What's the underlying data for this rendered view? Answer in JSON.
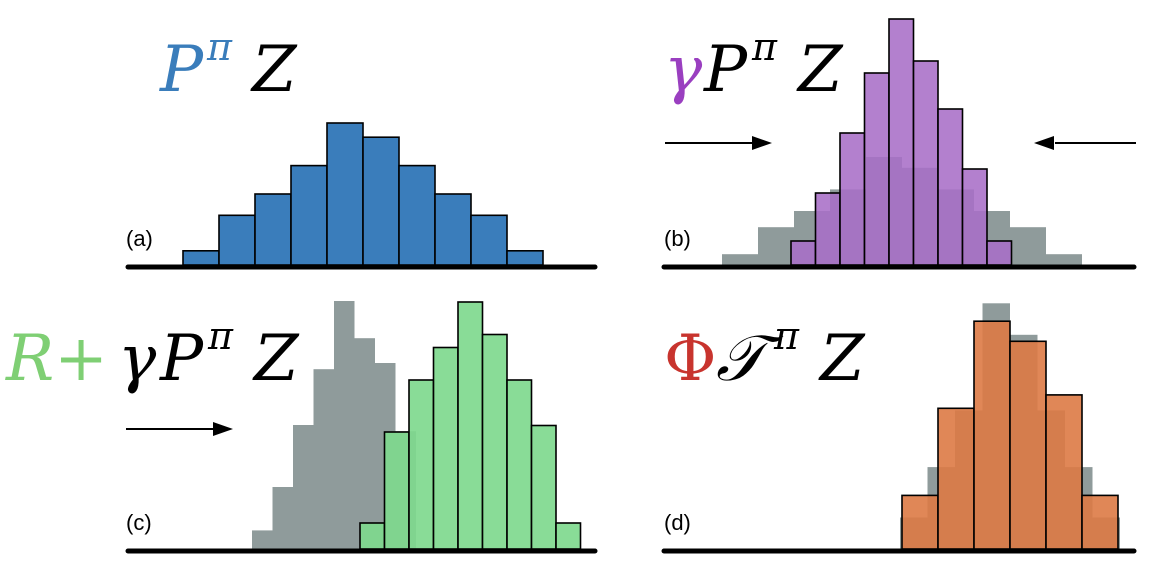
{
  "colors": {
    "blue": "#3a7dbb",
    "purple": "#a86ec7",
    "purple_overlap": "#9561ac",
    "gray": "#8f9b9b",
    "green": "#7fd98e",
    "green_overlap": "#5dbd72",
    "orange": "#dd7a45",
    "orange_overlap": "#c05b2b",
    "label_purple": "#9a3fc0",
    "label_green": "#7fcf74",
    "label_red": "#c8342e"
  },
  "panels": [
    {
      "id": "a",
      "label": "(a)",
      "formula": {
        "prefix": "",
        "op": "P",
        "sup": "π",
        "var": "Z"
      },
      "distribution": {
        "name": "",
        "bins": 10,
        "values": [
          2,
          7,
          10,
          14,
          20,
          18,
          14,
          10,
          7,
          2
        ]
      }
    },
    {
      "id": "b",
      "label": "(b)",
      "formula": {
        "prefix": "γ",
        "op": "P",
        "sup": "π",
        "var": "Z"
      },
      "arrows": [
        "right",
        "left"
      ],
      "background": {
        "values": [
          2,
          7,
          10,
          14,
          20,
          18,
          14,
          10,
          7,
          2
        ]
      },
      "distribution": {
        "values": [
          4,
          12,
          22,
          32,
          41,
          34,
          26,
          16,
          4
        ]
      }
    },
    {
      "id": "c",
      "label": "(c)",
      "formula": {
        "prefix": "R+",
        "op2": "γ",
        "op": "P",
        "sup": "π",
        "var": "Z"
      },
      "arrows": [
        "right"
      ],
      "background": {
        "values": [
          3,
          10,
          20,
          29,
          40,
          34,
          30,
          19
        ]
      },
      "distribution": {
        "values": [
          4,
          18,
          26,
          31,
          38,
          33,
          26,
          19,
          4
        ]
      }
    },
    {
      "id": "d",
      "label": "(d)",
      "formula": {
        "prefix": "Φ",
        "op": "𝒯",
        "sup": "π",
        "var": "Z"
      },
      "background": {
        "values": [
          5,
          13,
          22,
          39,
          34,
          22,
          13,
          5
        ]
      },
      "distribution": {
        "values": [
          8,
          21,
          34,
          31,
          23,
          8
        ]
      }
    }
  ]
}
